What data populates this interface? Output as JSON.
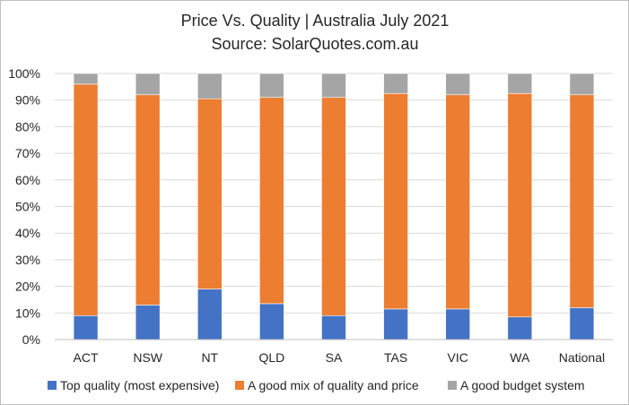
{
  "chart_data": {
    "type": "bar",
    "stacked": true,
    "title": "Price Vs. Quality | Australia July 2021",
    "subtitle": "Source: SolarQuotes.com.au",
    "xlabel": "",
    "ylabel": "",
    "ylim": [
      0,
      100
    ],
    "y_ticks": [
      "0%",
      "10%",
      "20%",
      "30%",
      "40%",
      "50%",
      "60%",
      "70%",
      "80%",
      "90%",
      "100%"
    ],
    "grid": true,
    "legend_position": "bottom",
    "categories": [
      "ACT",
      "NSW",
      "NT",
      "QLD",
      "SA",
      "TAS",
      "VIC",
      "WA",
      "National"
    ],
    "series": [
      {
        "name": "Top quality (most expensive)",
        "color": "#4472c4",
        "values": [
          9,
          13,
          19,
          13.5,
          9,
          11.5,
          11.5,
          8.5,
          12
        ]
      },
      {
        "name": "A good mix of quality and price",
        "color": "#ed7d31",
        "values": [
          87,
          79,
          71.5,
          77.5,
          82,
          81,
          80.5,
          84,
          80
        ]
      },
      {
        "name": "A good budget system",
        "color": "#a5a5a5",
        "values": [
          4,
          8,
          9.5,
          9,
          9,
          7.5,
          8,
          7.5,
          8
        ]
      }
    ]
  }
}
